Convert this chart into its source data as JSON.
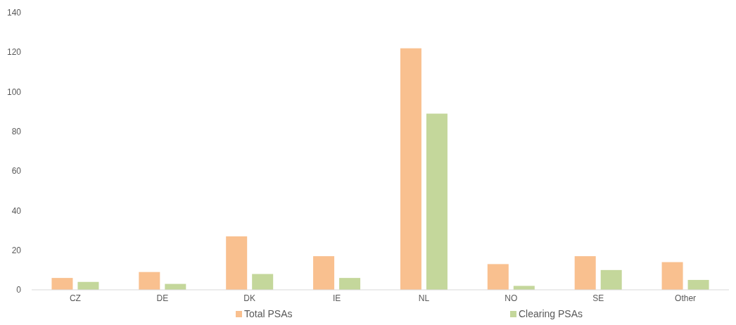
{
  "chart_data": {
    "type": "bar",
    "categories": [
      "CZ",
      "DE",
      "DK",
      "IE",
      "NL",
      "NO",
      "SE",
      "Other"
    ],
    "series": [
      {
        "name": "Total PSAs",
        "color": "#f9c08f",
        "values": [
          6,
          9,
          27,
          17,
          122,
          13,
          17,
          14
        ]
      },
      {
        "name": "Clearing PSAs",
        "color": "#c4d79b",
        "values": [
          4,
          3,
          8,
          6,
          89,
          2,
          10,
          5
        ]
      }
    ],
    "ylim": [
      0,
      140
    ],
    "yticks": [
      0,
      20,
      40,
      60,
      80,
      100,
      120,
      140
    ],
    "grid": false,
    "legend": "bottom"
  }
}
